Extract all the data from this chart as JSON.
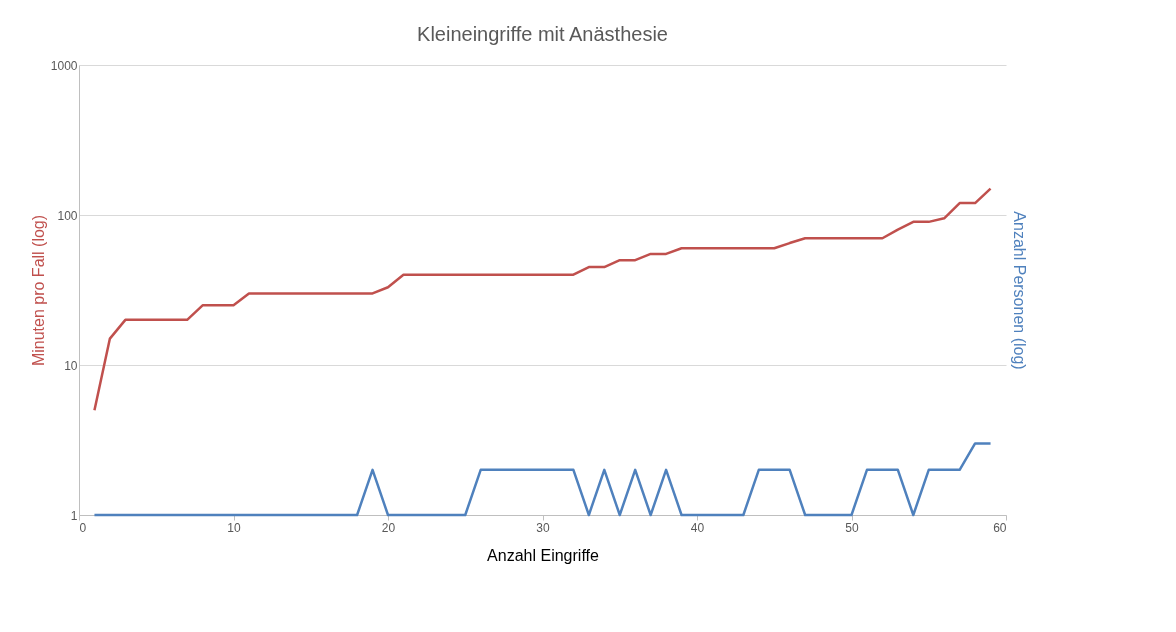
{
  "chart_data": {
    "type": "line",
    "title": "Kleineingriffe mit Anästhesie",
    "xlabel": "Anzahl Eingriffe",
    "ylabel": "Minuten pro Fall (log)",
    "y2label": "Anzahl Personen (log)",
    "x": [
      1,
      2,
      3,
      4,
      5,
      6,
      7,
      8,
      9,
      10,
      11,
      12,
      13,
      14,
      15,
      16,
      17,
      18,
      19,
      20,
      21,
      22,
      23,
      24,
      25,
      26,
      27,
      28,
      29,
      30,
      31,
      32,
      33,
      34,
      35,
      36,
      37,
      38,
      39,
      40,
      41,
      42,
      43,
      44,
      45,
      46,
      47,
      48,
      49,
      50,
      51,
      52,
      53,
      54,
      55,
      56,
      57,
      58,
      59
    ],
    "series": [
      {
        "color": "#c0504d",
        "values": [
          5,
          15,
          20,
          20,
          20,
          20,
          20,
          25,
          25,
          25,
          30,
          30,
          30,
          30,
          30,
          30,
          30,
          30,
          30,
          33,
          40,
          40,
          40,
          40,
          40,
          40,
          40,
          40,
          40,
          40,
          40,
          40,
          45,
          45,
          50,
          50,
          55,
          55,
          60,
          60,
          60,
          60,
          60,
          60,
          60,
          65,
          70,
          70,
          70,
          70,
          70,
          70,
          80,
          90,
          90,
          95,
          120,
          120,
          150
        ]
      },
      {
        "color": "#4f81bd",
        "values": [
          1,
          1,
          1,
          1,
          1,
          1,
          1,
          1,
          1,
          1,
          1,
          1,
          1,
          1,
          1,
          1,
          1,
          1,
          2,
          1,
          1,
          1,
          1,
          1,
          1,
          2,
          2,
          2,
          2,
          2,
          2,
          2,
          1,
          2,
          1,
          2,
          1,
          2,
          1,
          1,
          1,
          1,
          1,
          2,
          2,
          2,
          1,
          1,
          1,
          1,
          2,
          2,
          2,
          1,
          2,
          2,
          2,
          3,
          3
        ]
      }
    ],
    "xlim": [
      0,
      60
    ],
    "xticks": [
      0,
      10,
      20,
      30,
      40,
      50,
      60
    ],
    "ylim": [
      1,
      1000
    ],
    "yticks": [
      1,
      10,
      100,
      1000
    ],
    "log": "y",
    "grid": "y",
    "legend": false,
    "marker": "none",
    "line_style": "solid"
  }
}
